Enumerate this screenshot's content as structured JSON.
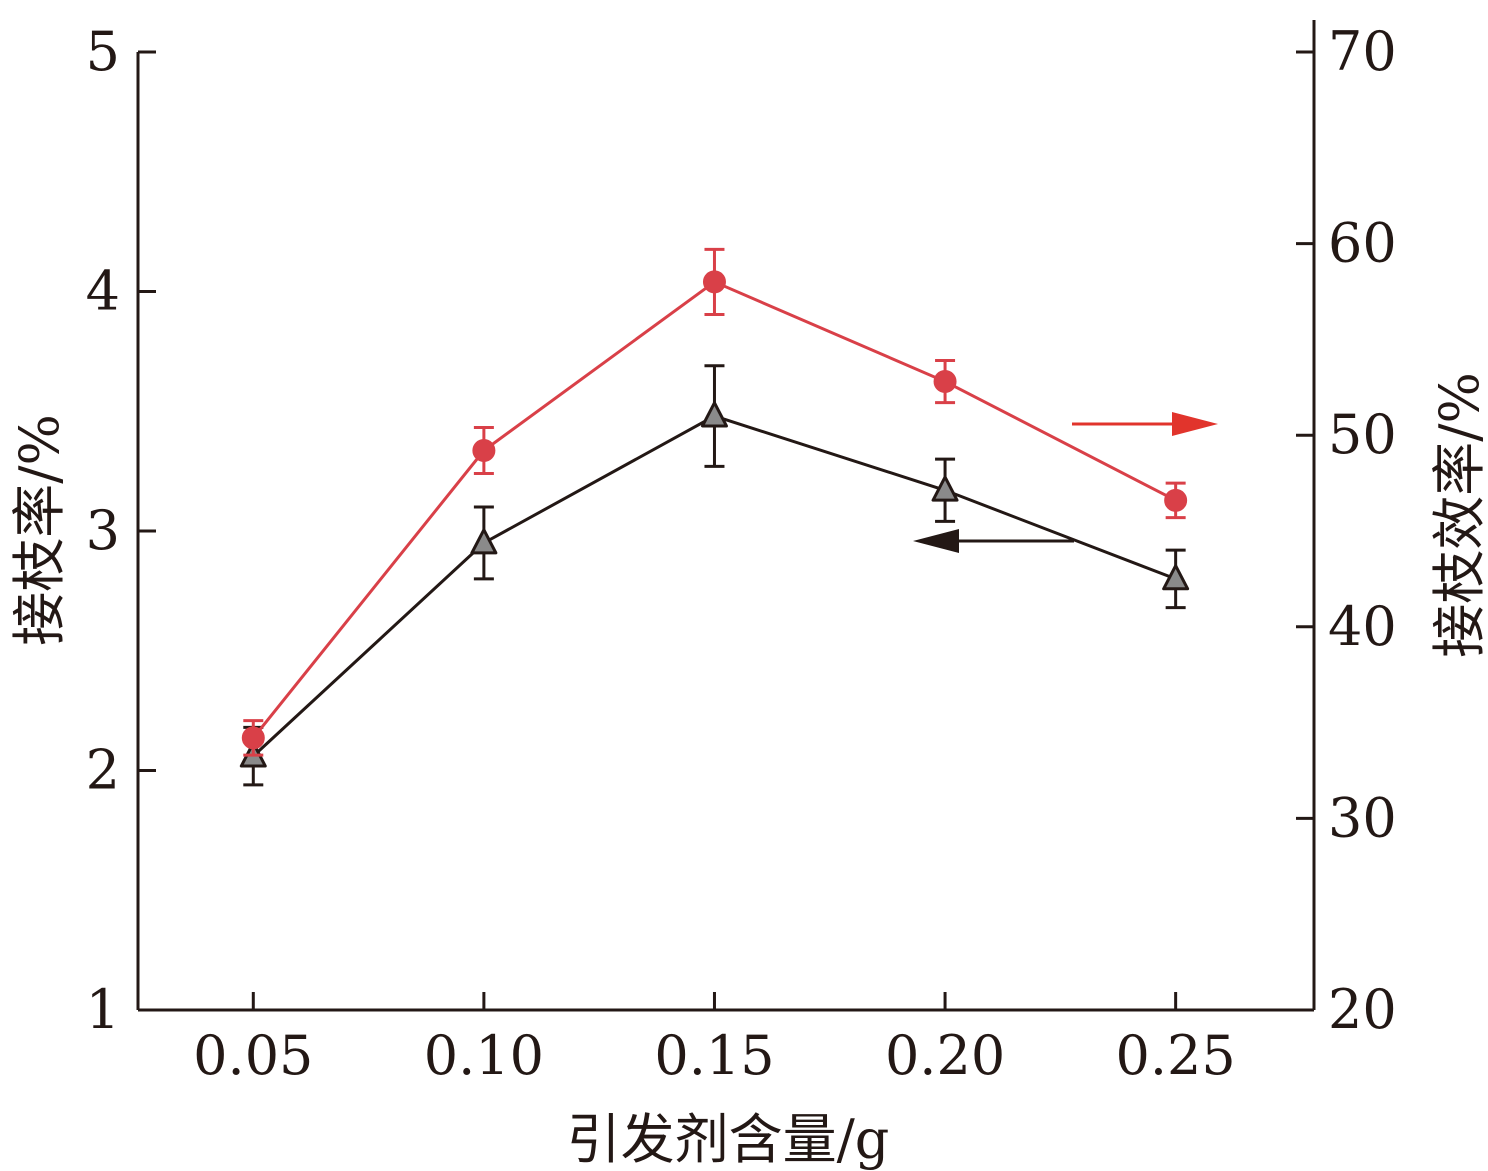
{
  "chart_data": {
    "type": "line",
    "xlabel": "引发剂含量/g",
    "ylabel": "接枝率/%",
    "y2label": "接枝效率/%",
    "categories": [
      "0.05",
      "0.10",
      "0.15",
      "0.20",
      "0.25"
    ],
    "x": [
      0.05,
      0.1,
      0.15,
      0.2,
      0.25
    ],
    "xlim": [
      0.025,
      0.28
    ],
    "ylim": [
      1,
      5
    ],
    "y2lim": [
      20,
      70
    ],
    "yticks": [
      "1",
      "2",
      "3",
      "4",
      "5"
    ],
    "y2ticks": [
      "20",
      "30",
      "40",
      "50",
      "60",
      "70"
    ],
    "series": [
      {
        "axis": "left",
        "marker": "triangle",
        "color": "#231815",
        "fill": "#8a8a8a",
        "values": [
          2.06,
          2.95,
          3.48,
          3.17,
          2.8
        ],
        "errors": [
          0.12,
          0.15,
          0.21,
          0.13,
          0.12
        ],
        "arrow": "left"
      },
      {
        "axis": "right",
        "marker": "circle",
        "color": "#d94048",
        "fill": "#d94048",
        "values": [
          34.2,
          49.2,
          58.0,
          52.8,
          46.6
        ],
        "errors": [
          0.9,
          1.2,
          1.7,
          1.1,
          0.9
        ],
        "arrow": "right"
      }
    ],
    "grid": false,
    "legend": "none"
  }
}
